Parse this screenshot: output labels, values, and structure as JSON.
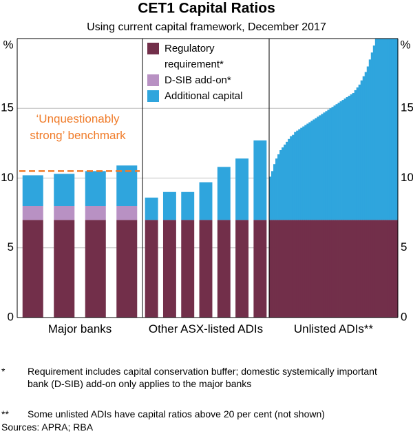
{
  "chart_data": {
    "type": "stacked-bar",
    "title": "CET1 Capital Ratios",
    "subtitle": "Using current capital framework, December 2017",
    "ylabel": "%",
    "ylim": [
      0,
      20
    ],
    "yticks": [
      0,
      5,
      10,
      15
    ],
    "grid": true,
    "series": [
      {
        "name": "Regulatory requirement*",
        "color": "#722f4a"
      },
      {
        "name": "D-SIB add-on*",
        "color": "#b891c3"
      },
      {
        "name": "Additional capital",
        "color": "#2fa5dd"
      }
    ],
    "panels": [
      {
        "label": "Major banks",
        "series": [
          {
            "values": [
              7,
              7,
              7,
              7
            ]
          },
          {
            "values": [
              1,
              1,
              1,
              1
            ]
          },
          {
            "values": [
              2.2,
              2.3,
              2.5,
              2.9
            ]
          }
        ]
      },
      {
        "label": "Other ASX-listed ADIs",
        "series": [
          {
            "values": [
              7,
              7,
              7,
              7,
              7,
              7,
              7
            ]
          },
          {
            "values": [
              0,
              0,
              0,
              0,
              0,
              0,
              0
            ]
          },
          {
            "values": [
              1.6,
              2.0,
              2.0,
              2.7,
              3.8,
              4.4,
              5.7
            ]
          }
        ]
      },
      {
        "label": "Unlisted ADIs**",
        "series": [
          {
            "values": [
              7,
              7,
              7,
              7,
              7,
              7,
              7,
              7,
              7,
              7,
              7,
              7,
              7,
              7,
              7,
              7,
              7,
              7,
              7,
              7,
              7,
              7,
              7,
              7,
              7,
              7,
              7,
              7,
              7,
              7,
              7,
              7,
              7,
              7,
              7,
              7,
              7,
              7,
              7,
              7,
              7,
              7,
              7,
              7,
              7,
              7,
              7,
              7,
              7,
              7,
              7,
              7,
              7,
              7,
              7,
              7,
              7,
              7,
              7,
              7,
              7,
              7
            ]
          },
          {
            "values": [
              0,
              0,
              0,
              0,
              0,
              0,
              0,
              0,
              0,
              0,
              0,
              0,
              0,
              0,
              0,
              0,
              0,
              0,
              0,
              0,
              0,
              0,
              0,
              0,
              0,
              0,
              0,
              0,
              0,
              0,
              0,
              0,
              0,
              0,
              0,
              0,
              0,
              0,
              0,
              0,
              0,
              0,
              0,
              0,
              0,
              0,
              0,
              0,
              0,
              0,
              0,
              0,
              0,
              0,
              0,
              0,
              0,
              0,
              0,
              0,
              0,
              0
            ]
          },
          {
            "values": [
              3.1,
              3.5,
              4.0,
              4.4,
              4.7,
              5.0,
              5.2,
              5.4,
              5.6,
              5.8,
              6.0,
              6.1,
              6.3,
              6.4,
              6.5,
              6.6,
              6.7,
              6.8,
              6.9,
              7.0,
              7.1,
              7.2,
              7.3,
              7.4,
              7.5,
              7.6,
              7.7,
              7.8,
              7.9,
              8.0,
              8.1,
              8.2,
              8.3,
              8.4,
              8.5,
              8.6,
              8.7,
              8.8,
              8.9,
              9.0,
              9.1,
              9.3,
              9.5,
              9.7,
              10.0,
              10.3,
              10.6,
              11.0,
              11.5,
              12.0,
              12.5,
              13,
              13,
              13,
              13,
              13,
              13,
              13,
              13,
              13,
              13,
              13
            ]
          }
        ]
      }
    ],
    "benchmark": {
      "label": "‘Unquestionably strong’ benchmark",
      "value": 10.5,
      "color": "#f07c2a"
    },
    "notes": [
      {
        "mark": "*",
        "text": "Requirement includes capital conservation buffer; domestic systemically important bank (D-SIB) add-on only applies to the major banks"
      },
      {
        "mark": "**",
        "text": "Some unlisted ADIs have capital ratios above 20 per cent (not shown)"
      }
    ],
    "source": "Sources: APRA; RBA"
  }
}
